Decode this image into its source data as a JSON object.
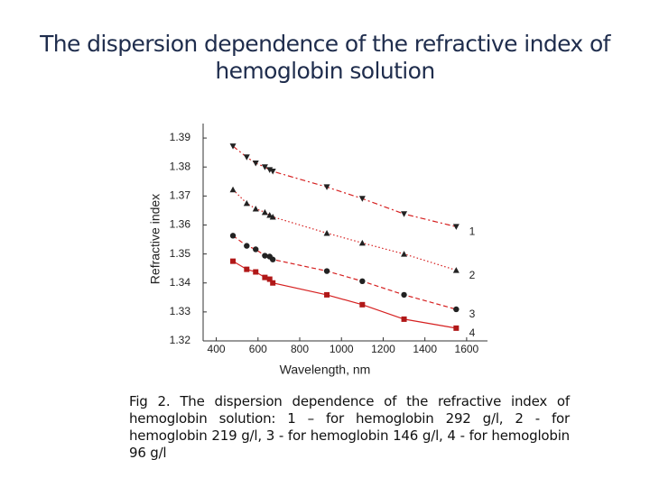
{
  "chart_data": {
    "type": "line",
    "title": "The dispersion dependence of the refractive index of hemoglobin solution",
    "x_label": "Wavelength, nm",
    "y_label": "Refractive index",
    "x": [
      480,
      546,
      589,
      633,
      656,
      671,
      930,
      1100,
      1300,
      1550
    ],
    "series": [
      {
        "name": "1",
        "color": "#222222",
        "line_color": "#d62020",
        "marker": "tri-down",
        "dash": "6 3 2 3",
        "values": [
          1.3872,
          1.3834,
          1.3813,
          1.38,
          1.379,
          1.3785,
          1.3731,
          1.3691,
          1.3638,
          1.3594
        ]
      },
      {
        "name": "2",
        "color": "#222222",
        "line_color": "#d62020",
        "marker": "tri-up",
        "dash": "1.5 2.5",
        "values": [
          1.3722,
          1.3675,
          1.3656,
          1.3644,
          1.3634,
          1.3628,
          1.3572,
          1.3538,
          1.35,
          1.3444
        ]
      },
      {
        "name": "3",
        "color": "#222222",
        "line_color": "#d62020",
        "marker": "circle",
        "dash": "5 3",
        "values": [
          1.3563,
          1.3528,
          1.3516,
          1.3494,
          1.3491,
          1.3481,
          1.3441,
          1.3406,
          1.3359,
          1.3309
        ]
      },
      {
        "name": "4",
        "color": "#b01818",
        "line_color": "#d62020",
        "marker": "square",
        "dash": "",
        "values": [
          1.3475,
          1.3447,
          1.3438,
          1.3419,
          1.3413,
          1.34,
          1.3359,
          1.3325,
          1.3275,
          1.3244
        ]
      }
    ],
    "xlim": [
      337,
      1700
    ],
    "ylim": [
      1.32,
      1.395
    ],
    "xticks": [
      400,
      600,
      800,
      1000,
      1200,
      1400,
      1600
    ],
    "yticks": [
      1.32,
      1.33,
      1.34,
      1.35,
      1.36,
      1.37,
      1.38,
      1.39
    ],
    "caption": "Fig 2. The dispersion dependence of the refractive index of hemoglobin solution: 1 – for hemoglobin 292 g/l, 2 - for hemoglobin 219 g/l, 3 - for hemoglobin 146 g/l, 4 - for hemoglobin 96 g/l"
  }
}
